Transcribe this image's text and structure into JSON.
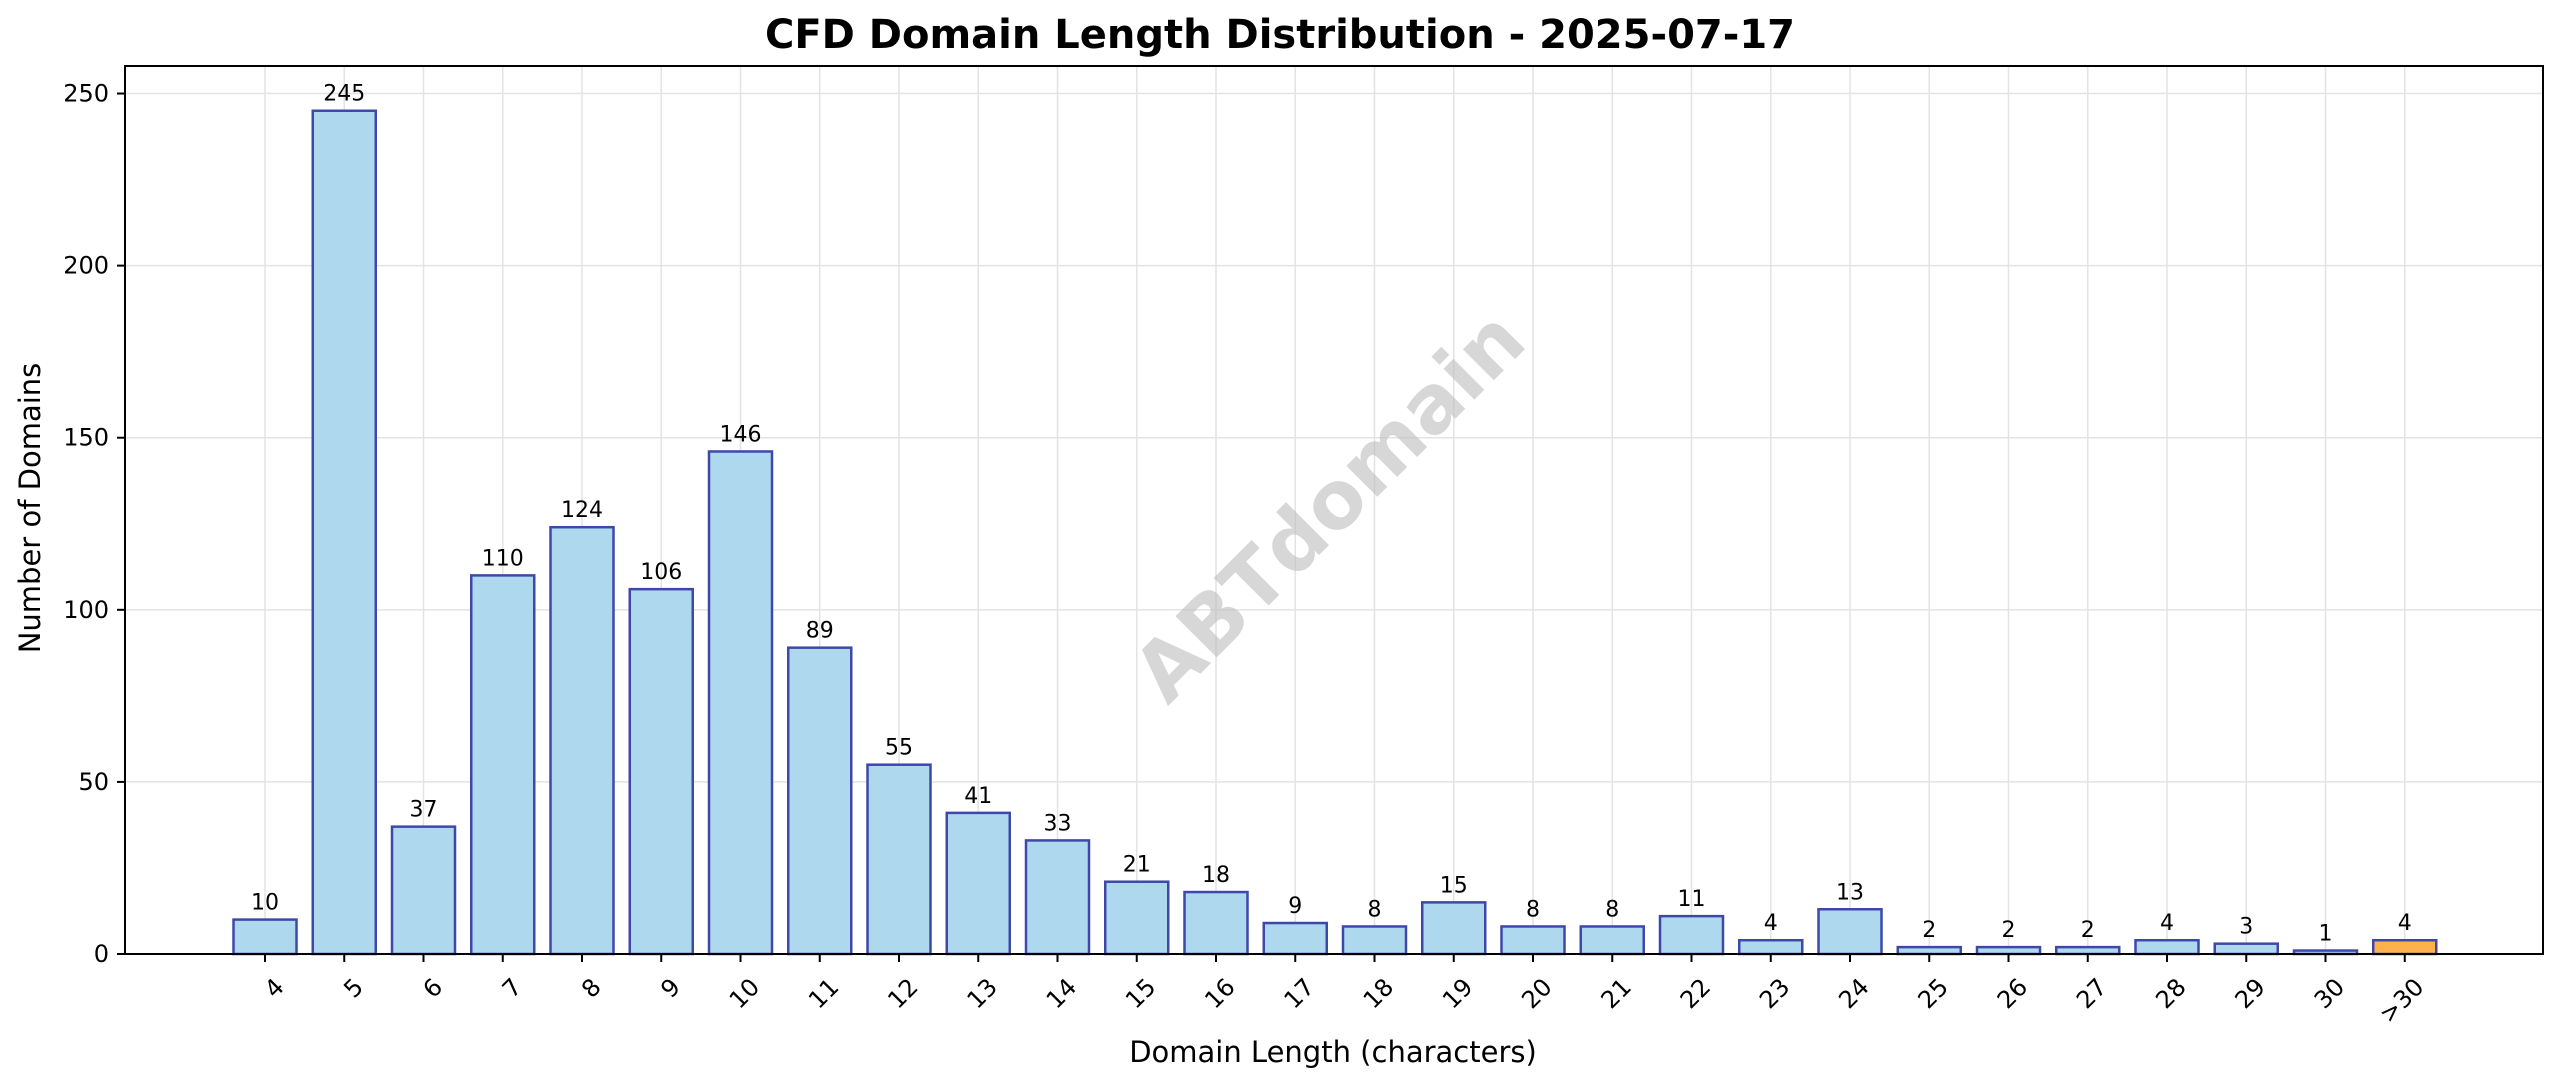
{
  "chart_data": {
    "type": "bar",
    "title": "CFD Domain Length Distribution - 2025-07-17",
    "xlabel": "Domain Length (characters)",
    "ylabel": "Number of Domains",
    "categories": [
      "4",
      "5",
      "6",
      "7",
      "8",
      "9",
      "10",
      "11",
      "12",
      "13",
      "14",
      "15",
      "16",
      "17",
      "18",
      "19",
      "20",
      "21",
      "22",
      "23",
      "24",
      "25",
      "26",
      "27",
      "28",
      "29",
      "30",
      ">30"
    ],
    "values": [
      10,
      245,
      37,
      110,
      124,
      106,
      146,
      89,
      55,
      41,
      33,
      21,
      18,
      9,
      8,
      15,
      8,
      8,
      11,
      4,
      13,
      2,
      2,
      2,
      4,
      3,
      1,
      4
    ],
    "ylim": [
      0,
      258
    ],
    "yticks": [
      0,
      50,
      100,
      150,
      200,
      250
    ],
    "grid": true,
    "watermark": "ABTdomain",
    "colors": {
      "bar": "#add8ee",
      "bar_edge": "#3f48aa",
      "highlight_bar": "#ffb24c",
      "grid": "#e3e3e3",
      "axis": "#000000"
    },
    "highlight_category": ">30"
  }
}
